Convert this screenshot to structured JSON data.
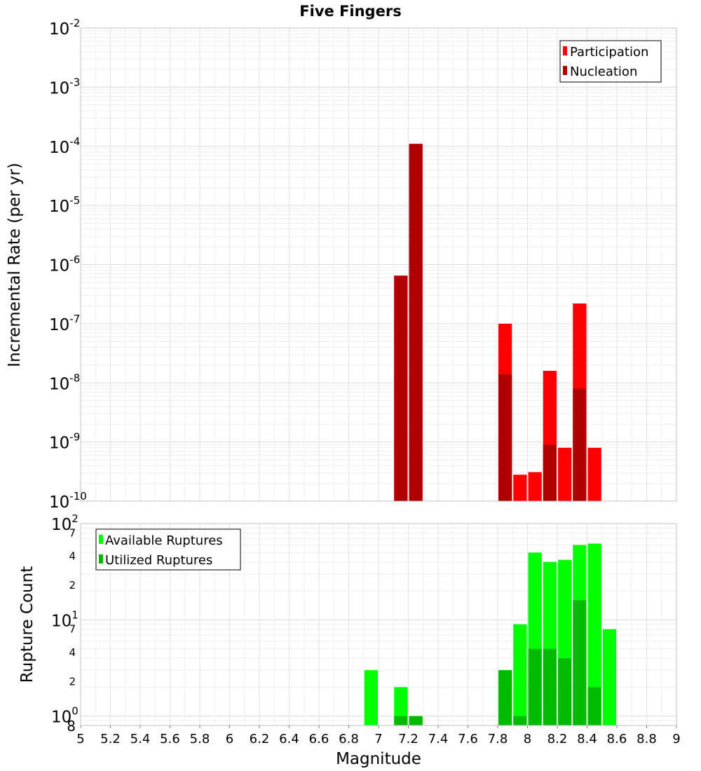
{
  "title": "Five Fingers",
  "chart_data": [
    {
      "type": "bar",
      "panel": "rates",
      "title": "Five Fingers",
      "xlabel": "Magnitude",
      "ylabel": "Incremental Rate (per yr)",
      "scale": "log",
      "xlim": [
        5,
        9
      ],
      "ylim": [
        1e-10,
        0.01
      ],
      "grid": true,
      "legend_position": "top-right",
      "x_ticks": [
        "5",
        "5.2",
        "5.4",
        "5.6",
        "5.8",
        "6",
        "6.2",
        "6.4",
        "6.6",
        "6.8",
        "7",
        "7.2",
        "7.4",
        "7.6",
        "7.8",
        "8",
        "8.2",
        "8.4",
        "8.6",
        "8.8",
        "9"
      ],
      "y_ticks": [
        {
          "base": "10",
          "exp": "-2"
        },
        {
          "base": "10",
          "exp": "-3"
        },
        {
          "base": "10",
          "exp": "-4"
        },
        {
          "base": "10",
          "exp": "-5"
        },
        {
          "base": "10",
          "exp": "-6"
        },
        {
          "base": "10",
          "exp": "-7"
        },
        {
          "base": "10",
          "exp": "-8"
        },
        {
          "base": "10",
          "exp": "-9"
        },
        {
          "base": "10",
          "exp": "-10"
        }
      ],
      "series": [
        {
          "name": "Participation",
          "color": "#ff0000",
          "x": [
            7.15,
            7.25,
            7.85,
            7.95,
            8.05,
            8.15,
            8.25,
            8.35,
            8.45
          ],
          "values": [
            6.5e-07,
            0.00011,
            1e-07,
            2.8e-10,
            3.1e-10,
            1.6e-08,
            8e-10,
            2.2e-07,
            8e-10
          ]
        },
        {
          "name": "Nucleation",
          "color": "#b00000",
          "x": [
            7.15,
            7.25,
            7.85,
            8.15,
            8.35
          ],
          "values": [
            6.5e-07,
            0.00011,
            1.4e-08,
            9e-10,
            8e-09
          ]
        }
      ]
    },
    {
      "type": "bar",
      "panel": "counts",
      "xlabel": "Magnitude",
      "ylabel": "Rupture Count",
      "scale": "log",
      "xlim": [
        5,
        9
      ],
      "ylim": [
        0.8,
        100
      ],
      "grid": true,
      "legend_position": "top-left",
      "x_ticks": [
        "5",
        "5.2",
        "5.4",
        "5.6",
        "5.8",
        "6",
        "6.2",
        "6.4",
        "6.6",
        "6.8",
        "7",
        "7.2",
        "7.4",
        "7.6",
        "7.8",
        "8",
        "8.2",
        "8.4",
        "8.6",
        "8.8",
        "9"
      ],
      "y_ticks": [
        {
          "base": "10",
          "exp": "2"
        },
        {
          "base": "10",
          "exp": "1"
        },
        {
          "base": "10",
          "exp": "0"
        }
      ],
      "y_minor_labels": [
        "7",
        "4",
        "2",
        "7",
        "4",
        "2",
        "8"
      ],
      "series": [
        {
          "name": "Available Ruptures",
          "color": "#00ff00",
          "x": [
            6.95,
            7.15,
            7.25,
            7.85,
            7.95,
            8.05,
            8.15,
            8.25,
            8.35,
            8.45,
            8.55
          ],
          "values": [
            3,
            2,
            1,
            3,
            9,
            50,
            40,
            42,
            60,
            62,
            8
          ]
        },
        {
          "name": "Utilized Ruptures",
          "color": "#00bb00",
          "x": [
            7.15,
            7.25,
            7.85,
            7.95,
            8.05,
            8.15,
            8.25,
            8.35,
            8.45
          ],
          "values": [
            1,
            1,
            3,
            1,
            5,
            5,
            4,
            16,
            2
          ]
        }
      ]
    }
  ]
}
